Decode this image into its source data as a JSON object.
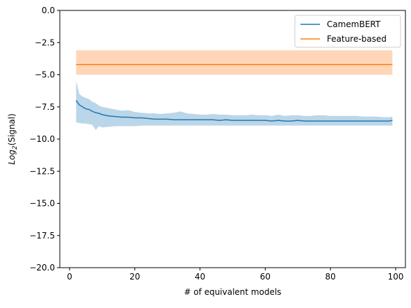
{
  "chart_data": {
    "type": "line",
    "xlabel": "# of equivalent models",
    "ylabel_math": "Log",
    "ylabel_sub": "2",
    "ylabel_rest": "(Signal)",
    "xlim": [
      -3,
      103
    ],
    "ylim": [
      -20,
      0
    ],
    "xticks": [
      0,
      20,
      40,
      60,
      80,
      100
    ],
    "yticks": [
      0.0,
      -2.5,
      -5.0,
      -7.5,
      -10.0,
      -12.5,
      -15.0,
      -17.5,
      -20.0
    ],
    "xtick_labels": [
      "0",
      "20",
      "40",
      "60",
      "80",
      "100"
    ],
    "ytick_labels": [
      "0.0",
      "−2.5",
      "−5.0",
      "−7.5",
      "−10.0",
      "−12.5",
      "−15.0",
      "−17.5",
      "−20.0"
    ],
    "legend_position": "top-right",
    "grid": false,
    "series": [
      {
        "name": "CamemBERT",
        "color": "#1f77b4",
        "band_color": "#1f77b4",
        "x": [
          2,
          3,
          4,
          5,
          6,
          7,
          8,
          9,
          10,
          12,
          14,
          16,
          18,
          20,
          22,
          24,
          26,
          28,
          30,
          32,
          34,
          36,
          38,
          40,
          42,
          44,
          46,
          48,
          50,
          52,
          54,
          56,
          58,
          60,
          62,
          64,
          66,
          68,
          70,
          72,
          74,
          76,
          78,
          80,
          82,
          84,
          86,
          88,
          90,
          92,
          94,
          96,
          98,
          99
        ],
        "y": [
          -7.0,
          -7.35,
          -7.5,
          -7.65,
          -7.7,
          -7.85,
          -7.95,
          -8.0,
          -8.1,
          -8.2,
          -8.25,
          -8.3,
          -8.3,
          -8.35,
          -8.35,
          -8.4,
          -8.45,
          -8.45,
          -8.45,
          -8.5,
          -8.5,
          -8.5,
          -8.5,
          -8.5,
          -8.5,
          -8.5,
          -8.55,
          -8.5,
          -8.55,
          -8.55,
          -8.55,
          -8.55,
          -8.55,
          -8.55,
          -8.6,
          -8.55,
          -8.6,
          -8.6,
          -8.55,
          -8.6,
          -8.6,
          -8.6,
          -8.6,
          -8.6,
          -8.6,
          -8.6,
          -8.6,
          -8.6,
          -8.6,
          -8.6,
          -8.6,
          -8.6,
          -8.6,
          -8.55
        ],
        "lower": [
          -8.7,
          -8.75,
          -8.8,
          -8.8,
          -8.85,
          -8.9,
          -9.3,
          -9.0,
          -9.1,
          -9.05,
          -9.0,
          -9.0,
          -9.0,
          -9.0,
          -8.95,
          -8.95,
          -8.95,
          -8.95,
          -8.95,
          -8.95,
          -8.95,
          -8.95,
          -8.95,
          -8.95,
          -8.95,
          -8.95,
          -8.95,
          -8.95,
          -8.95,
          -8.95,
          -8.95,
          -8.95,
          -8.95,
          -8.95,
          -8.95,
          -8.95,
          -8.95,
          -8.95,
          -8.95,
          -8.95,
          -8.95,
          -8.95,
          -8.95,
          -8.95,
          -8.95,
          -8.95,
          -8.95,
          -8.95,
          -8.95,
          -8.95,
          -8.95,
          -8.95,
          -8.95,
          -8.95
        ],
        "upper": [
          -5.5,
          -6.5,
          -6.7,
          -6.8,
          -6.9,
          -7.1,
          -7.2,
          -7.4,
          -7.5,
          -7.6,
          -7.7,
          -7.8,
          -7.75,
          -7.9,
          -7.95,
          -8.0,
          -8.0,
          -8.05,
          -8.0,
          -7.95,
          -7.85,
          -8.0,
          -8.05,
          -8.1,
          -8.1,
          -8.05,
          -8.1,
          -8.1,
          -8.15,
          -8.15,
          -8.15,
          -8.1,
          -8.15,
          -8.15,
          -8.2,
          -8.1,
          -8.2,
          -8.15,
          -8.15,
          -8.2,
          -8.2,
          -8.15,
          -8.15,
          -8.2,
          -8.2,
          -8.2,
          -8.2,
          -8.2,
          -8.25,
          -8.25,
          -8.25,
          -8.3,
          -8.3,
          -8.25
        ]
      },
      {
        "name": "Feature-based",
        "color": "#ff7f0e",
        "band_color": "#ffbb88",
        "x": [
          2,
          99
        ],
        "y": [
          -4.2,
          -4.2
        ],
        "lower": [
          -5.0,
          -5.0
        ],
        "upper": [
          -3.1,
          -3.1
        ]
      }
    ]
  }
}
